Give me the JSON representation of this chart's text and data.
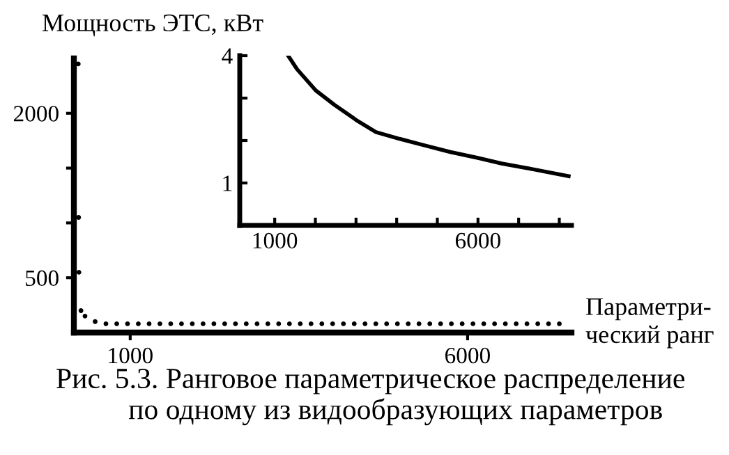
{
  "chart_data": [
    {
      "type": "scatter",
      "ylabel": "Мощность ЭТС, кВт",
      "xlabel": "Параметри-\nческий ранг",
      "x": [
        230,
        235,
        240,
        270,
        330,
        480,
        640,
        800,
        960,
        1120,
        1280,
        1440,
        1600,
        1760,
        1920,
        2080,
        2240,
        2400,
        2560,
        2720,
        2880,
        3040,
        3200,
        3360,
        3520,
        3680,
        3840,
        4000,
        4160,
        4320,
        4480,
        4640,
        4800,
        4960,
        5120,
        5280,
        5440,
        5600,
        5760,
        5920,
        6080,
        6240,
        6400,
        6560,
        6720,
        6880,
        7040,
        7200,
        7360
      ],
      "values": [
        2450,
        1050,
        550,
        200,
        150,
        100,
        80,
        80,
        80,
        80,
        80,
        80,
        80,
        80,
        80,
        80,
        80,
        80,
        80,
        80,
        80,
        80,
        80,
        80,
        80,
        80,
        80,
        80,
        80,
        80,
        80,
        80,
        80,
        80,
        80,
        80,
        80,
        80,
        80,
        80,
        80,
        80,
        80,
        80,
        80,
        80,
        80,
        80,
        80
      ],
      "color": "#000000",
      "marker": "circle",
      "xlim": [
        165,
        7540
      ],
      "ylim": [
        0,
        2500
      ],
      "xticks": [
        1000,
        6000
      ],
      "yticks": [
        500,
        {
          "value": 1000,
          "label": null
        },
        {
          "value": 1500,
          "label": null
        },
        2000
      ],
      "grid": false,
      "annotations": [
        "Рис. 5.3. Ранговое параметрическое распределение\n          по одному из видообразующих параметров"
      ]
    },
    {
      "type": "line",
      "color": "#000000",
      "x": [
        1330,
        1550,
        2010,
        2470,
        3040,
        3490,
        4070,
        4630,
        5320,
        6000,
        6580,
        7260,
        8230
      ],
      "values": [
        4.0,
        3.68,
        3.18,
        2.84,
        2.46,
        2.2,
        2.04,
        1.9,
        1.73,
        1.59,
        1.46,
        1.34,
        1.16
      ],
      "xlim": [
        140,
        8300
      ],
      "ylim": [
        0,
        4
      ],
      "xticks": [
        1000,
        {
          "value": 2000,
          "label": null
        },
        {
          "value": 3000,
          "label": null
        },
        {
          "value": 4000,
          "label": null
        },
        {
          "value": 5000,
          "label": null
        },
        6000,
        {
          "value": 7000,
          "label": null
        },
        {
          "value": 8000,
          "label": null
        }
      ],
      "yticks": [
        1,
        {
          "value": 2,
          "label": null
        },
        {
          "value": 3,
          "label": null
        },
        4
      ],
      "grid": false,
      "line_style": "solid"
    }
  ]
}
